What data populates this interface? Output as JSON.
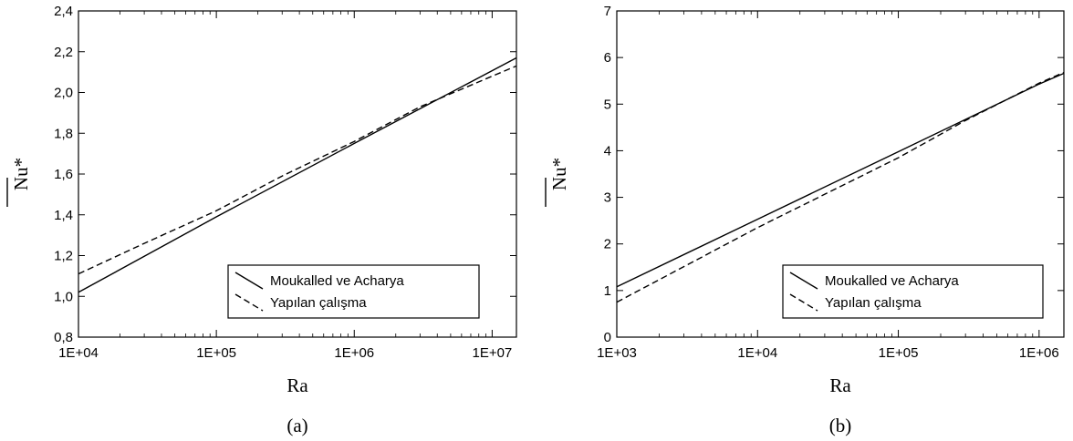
{
  "chart_data": [
    {
      "type": "line",
      "caption": "(a)",
      "xlabel": "Ra",
      "ylabel": "Nu*",
      "x_scale": "log",
      "xlim": [
        10000,
        15000000
      ],
      "ylim": [
        0.8,
        2.4
      ],
      "x_ticks": [
        "1E+04",
        "1E+05",
        "1E+06",
        "1E+07"
      ],
      "x_tick_values": [
        10000,
        100000,
        1000000,
        10000000
      ],
      "y_ticks": [
        "0,8",
        "1,0",
        "1,2",
        "1,4",
        "1,6",
        "1,8",
        "2,0",
        "2,2",
        "2,4"
      ],
      "y_tick_values": [
        0.8,
        1.0,
        1.2,
        1.4,
        1.6,
        1.8,
        2.0,
        2.2,
        2.4
      ],
      "grid": false,
      "legend_position": "bottom-right",
      "series": [
        {
          "name": "Moukalled ve Acharya",
          "style": "solid",
          "x": [
            10000,
            100000,
            1000000,
            15000000
          ],
          "y": [
            1.02,
            1.39,
            1.75,
            2.17
          ]
        },
        {
          "name": "Yapılan çalışma",
          "style": "dashed",
          "x": [
            10000,
            30000,
            100000,
            300000,
            1000000,
            3000000,
            10000000,
            15000000
          ],
          "y": [
            1.11,
            1.26,
            1.42,
            1.59,
            1.76,
            1.93,
            2.08,
            2.13
          ]
        }
      ]
    },
    {
      "type": "line",
      "caption": "(b)",
      "xlabel": "Ra",
      "ylabel": "Nu*",
      "x_scale": "log",
      "xlim": [
        1000,
        1500000
      ],
      "ylim": [
        0,
        7
      ],
      "x_ticks": [
        "1E+03",
        "1E+04",
        "1E+05",
        "1E+06"
      ],
      "x_tick_values": [
        1000,
        10000,
        100000,
        1000000
      ],
      "y_ticks": [
        "0",
        "1",
        "2",
        "3",
        "4",
        "5",
        "6",
        "7"
      ],
      "y_tick_values": [
        0,
        1,
        2,
        3,
        4,
        5,
        6,
        7
      ],
      "grid": false,
      "legend_position": "bottom-right",
      "series": [
        {
          "name": "Moukalled ve Acharya",
          "style": "solid",
          "x": [
            1000,
            10000,
            100000,
            1000000,
            1500000
          ],
          "y": [
            1.08,
            2.53,
            3.98,
            5.43,
            5.66
          ]
        },
        {
          "name": "Yapılan çalışma",
          "style": "dashed",
          "x": [
            1000,
            10000,
            100000,
            300000,
            1000000,
            1500000
          ],
          "y": [
            0.75,
            2.35,
            3.85,
            4.65,
            5.45,
            5.68
          ]
        }
      ]
    }
  ]
}
